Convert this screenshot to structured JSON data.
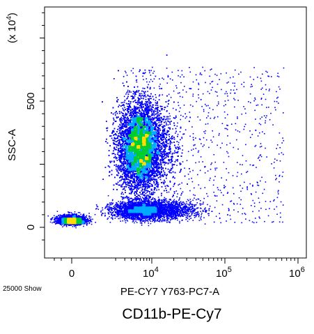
{
  "chart_data": {
    "type": "scatter",
    "subtype": "flow-cytometry-density-dot-plot",
    "xlabel": "PE-CY7 Y763-PC7-A",
    "ylabel": "SSC-A",
    "y_multiplier_label": "(x 10^4)",
    "y_multiplier_base": "(x 10",
    "y_multiplier_exp": "4",
    "caption": "CD11b-PE-Cy7",
    "event_count_label": "25000 Show",
    "x_scale": "biexponential",
    "x_ticks": [
      {
        "value": 0,
        "base": "0",
        "exp": ""
      },
      {
        "value": 10000,
        "base": "10",
        "exp": "4"
      },
      {
        "value": 100000,
        "base": "10",
        "exp": "5"
      },
      {
        "value": 1000000,
        "base": "10",
        "exp": "6"
      }
    ],
    "y_ticks": [
      {
        "value": 0,
        "label": "0"
      },
      {
        "value": 500,
        "label": "500"
      }
    ],
    "ylim": [
      -90,
      950
    ],
    "total_events": 25000,
    "populations": [
      {
        "name": "",
        "x_center": 0,
        "y_center": 20,
        "relative_size": 0.08,
        "color_max": "#00cc33"
      },
      {
        "name": "",
        "x_center": 8000,
        "y_center": 70,
        "relative_size": 0.15,
        "color_max": "#0000ff"
      },
      {
        "name": "",
        "x_center": 6000,
        "y_center": 320,
        "relative_size": 0.77,
        "color_max": "#0000ff"
      }
    ],
    "grid": false,
    "colors": {
      "low_density": "#0000ff",
      "mid_density": "#00aaff",
      "high_density": "#00cc33",
      "peak_density": "#ffdd00"
    }
  }
}
